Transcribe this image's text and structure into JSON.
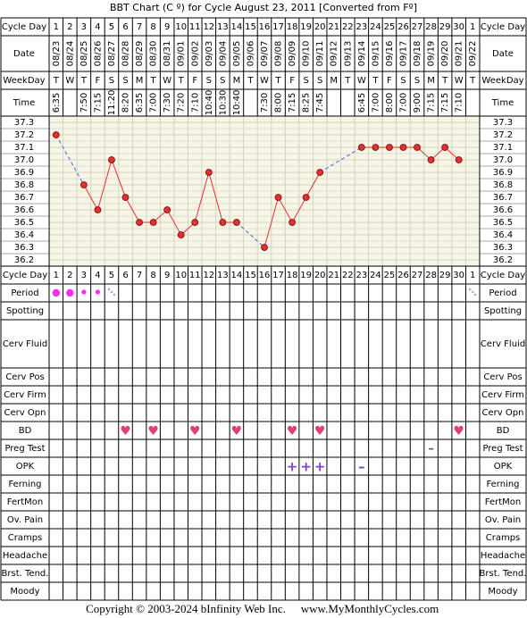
{
  "title": "BBT Chart (C º) for Cycle August 23, 2011  [Converted from Fº]",
  "footer": {
    "copyright": "Copyright © 2003-2024 bInfinity Web Inc.",
    "site": "www.MyMonthlyCycles.com"
  },
  "labels": {
    "top": [
      "Cycle Day",
      "Date",
      "WeekDay",
      "Time"
    ],
    "bottom": [
      "Cycle Day",
      "Period",
      "Spotting",
      "Cerv Fluid",
      "Cerv Pos",
      "Cerv Firm",
      "Cerv Opn",
      "BD",
      "Preg Test",
      "OPK",
      "Ferning",
      "FertMon",
      "Ov. Pain",
      "Cramps",
      "Headache",
      "Brst. Tend.",
      "Moody"
    ]
  },
  "chart_data": {
    "type": "line",
    "cycle_days": [
      1,
      2,
      3,
      4,
      5,
      6,
      7,
      8,
      9,
      10,
      11,
      12,
      13,
      14,
      15,
      16,
      17,
      18,
      19,
      20,
      21,
      22,
      23,
      24,
      25,
      26,
      27,
      28,
      29,
      30,
      1
    ],
    "x": [
      "08/23",
      "08/24",
      "08/25",
      "08/26",
      "08/27",
      "08/28",
      "08/29",
      "08/30",
      "08/31",
      "09/01",
      "09/02",
      "09/03",
      "09/04",
      "09/05",
      "09/06",
      "09/07",
      "09/08",
      "09/09",
      "09/10",
      "09/11",
      "09/12",
      "09/13",
      "09/14",
      "09/15",
      "09/16",
      "09/17",
      "09/18",
      "09/19",
      "09/20",
      "09/21",
      "09/22"
    ],
    "weekdays": [
      "T",
      "W",
      "T",
      "F",
      "S",
      "S",
      "M",
      "T",
      "W",
      "T",
      "F",
      "S",
      "S",
      "M",
      "T",
      "W",
      "T",
      "F",
      "S",
      "S",
      "M",
      "T",
      "W",
      "T",
      "F",
      "S",
      "S",
      "M",
      "T",
      "W",
      "T"
    ],
    "times": [
      "6:35",
      null,
      "7:50",
      "7:15",
      "11:20",
      "8:20",
      "6:35",
      "7:00",
      "7:30",
      "7:20",
      "7:10",
      "10:40",
      "10:30",
      "10:40",
      null,
      "7:30",
      "8:00",
      "7:15",
      "8:25",
      "7:45",
      null,
      null,
      "6:45",
      "7:00",
      "8:00",
      "7:00",
      "9:00",
      "7:15",
      "7:15",
      "7:10",
      null
    ],
    "values": [
      37.2,
      null,
      36.8,
      36.6,
      37.0,
      36.7,
      36.5,
      36.5,
      36.6,
      36.4,
      36.5,
      36.9,
      36.5,
      36.5,
      null,
      36.3,
      36.7,
      36.5,
      36.7,
      36.9,
      null,
      null,
      37.1,
      37.1,
      37.1,
      37.1,
      37.1,
      37.0,
      37.1,
      37.0,
      null
    ],
    "color": "#e03030",
    "gap_color": "#4466dd",
    "ylim": [
      36.15,
      37.35
    ],
    "yticks": [
      37.3,
      37.2,
      37.1,
      {
        "value": 37.0,
        "label": "37.0"
      },
      36.9,
      36.8,
      36.7,
      36.6,
      36.5,
      36.4,
      36.3,
      36.2
    ],
    "grid": true,
    "period": [
      "heavy",
      "heavy",
      "medium",
      "medium",
      "light",
      null,
      null,
      null,
      null,
      null,
      null,
      null,
      null,
      null,
      null,
      null,
      null,
      null,
      null,
      null,
      null,
      null,
      null,
      null,
      null,
      null,
      null,
      null,
      null,
      null,
      "light"
    ],
    "bd": [
      {
        "day": 6,
        "symbol": "♥"
      },
      {
        "day": 8,
        "symbol": "♥"
      },
      {
        "day": 11,
        "symbol": "♥"
      },
      {
        "day": 14,
        "symbol": "♥"
      },
      {
        "day": 18,
        "symbol": "♥"
      },
      {
        "day": 20,
        "symbol": "♥"
      },
      {
        "day": 30,
        "symbol": "♥"
      }
    ],
    "preg_test": [
      {
        "day": 28,
        "symbol": "–"
      }
    ],
    "opk": [
      {
        "day": 18,
        "symbol": "+"
      },
      {
        "day": 19,
        "symbol": "+"
      },
      {
        "day": 20,
        "symbol": "+"
      },
      {
        "day": 23,
        "symbol": "–"
      }
    ]
  }
}
